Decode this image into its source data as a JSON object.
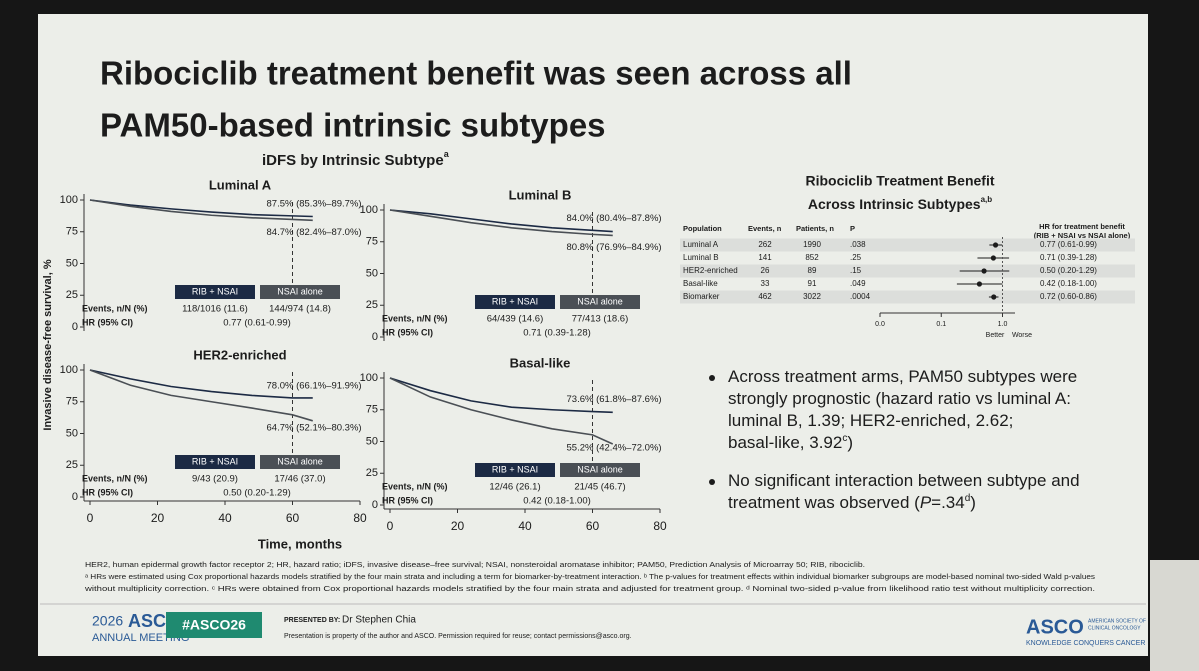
{
  "title": [
    "Ribociclib treatment benefit was seen across all",
    "PAM50-based intrinsic subtypes"
  ],
  "km": {
    "heading": "iDFS by Intrinsic Subtype",
    "heading_sup": "a",
    "y_label": "Invasive disease-free survival, %",
    "x_label": "Time, months"
  },
  "chart_data": [
    {
      "type": "line",
      "title": "Luminal A",
      "x": [
        0,
        12,
        24,
        36,
        48,
        60,
        66
      ],
      "xlim": [
        0,
        80
      ],
      "ylim": [
        0,
        100
      ],
      "yticks": [
        0,
        25,
        50,
        75,
        100
      ],
      "reference_x": 60,
      "series": [
        {
          "name": "RIB + NSAI",
          "color": "#1c2a44",
          "values": [
            100,
            96,
            93,
            90.5,
            88.5,
            87.5,
            87
          ]
        },
        {
          "name": "NSAI alone",
          "color": "#4a4f55",
          "values": [
            100,
            95,
            91,
            88,
            86,
            84.7,
            84
          ]
        }
      ],
      "annotations": [
        "87.5% (85.3%–89.7%)",
        "84.7% (82.4%–87.0%)"
      ],
      "table": {
        "rows": [
          {
            "label": "Events, n/N (%)",
            "cells": [
              "118/1016 (11.6)",
              "144/974 (14.8)"
            ]
          },
          {
            "label": "HR (95% CI)",
            "cells": [
              "0.77 (0.61-0.99)"
            ]
          }
        ]
      }
    },
    {
      "type": "line",
      "title": "Luminal B",
      "x": [
        0,
        12,
        24,
        36,
        48,
        60,
        66
      ],
      "xlim": [
        0,
        80
      ],
      "ylim": [
        0,
        100
      ],
      "yticks": [
        0,
        25,
        50,
        75,
        100
      ],
      "reference_x": 60,
      "series": [
        {
          "name": "RIB + NSAI",
          "color": "#1c2a44",
          "values": [
            100,
            97,
            93,
            89,
            86,
            84,
            83
          ]
        },
        {
          "name": "NSAI alone",
          "color": "#4a4f55",
          "values": [
            100,
            95,
            90,
            86,
            83,
            80.8,
            80
          ]
        }
      ],
      "annotations": [
        "84.0% (80.4%–87.8%)",
        "80.8% (76.9%–84.9%)"
      ],
      "table": {
        "rows": [
          {
            "label": "Events, n/N (%)",
            "cells": [
              "64/439 (14.6)",
              "77/413 (18.6)"
            ]
          },
          {
            "label": "HR (95% CI)",
            "cells": [
              "0.71 (0.39-1.28)"
            ]
          }
        ]
      }
    },
    {
      "type": "line",
      "title": "HER2-enriched",
      "x": [
        0,
        12,
        24,
        36,
        48,
        60,
        66
      ],
      "xlim": [
        0,
        80
      ],
      "ylim": [
        0,
        100
      ],
      "yticks": [
        0,
        25,
        50,
        75,
        100
      ],
      "xticks": [
        0,
        20,
        40,
        60,
        80
      ],
      "reference_x": 60,
      "series": [
        {
          "name": "RIB + NSAI",
          "color": "#1c2a44",
          "values": [
            100,
            93,
            87,
            83,
            80,
            78,
            78
          ]
        },
        {
          "name": "NSAI alone",
          "color": "#4a4f55",
          "values": [
            100,
            88,
            80,
            75,
            70,
            64.7,
            60
          ]
        }
      ],
      "annotations": [
        "78.0% (66.1%–91.9%)",
        "64.7% (52.1%–80.3%)"
      ],
      "table": {
        "rows": [
          {
            "label": "Events, n/N (%)",
            "cells": [
              "9/43 (20.9)",
              "17/46 (37.0)"
            ]
          },
          {
            "label": "HR (95% CI)",
            "cells": [
              "0.50 (0.20-1.29)"
            ]
          }
        ]
      }
    },
    {
      "type": "line",
      "title": "Basal-like",
      "x": [
        0,
        12,
        24,
        36,
        48,
        60,
        66
      ],
      "xlim": [
        0,
        80
      ],
      "ylim": [
        0,
        100
      ],
      "yticks": [
        0,
        25,
        50,
        75,
        100
      ],
      "xticks": [
        0,
        20,
        40,
        60,
        80
      ],
      "reference_x": 60,
      "series": [
        {
          "name": "RIB + NSAI",
          "color": "#1c2a44",
          "values": [
            100,
            90,
            82,
            77,
            75,
            73.6,
            73
          ]
        },
        {
          "name": "NSAI alone",
          "color": "#4a4f55",
          "values": [
            100,
            85,
            75,
            67,
            60,
            55.2,
            48
          ]
        }
      ],
      "annotations": [
        "73.6% (61.8%–87.6%)",
        "55.2% (42.4%–72.0%)"
      ],
      "table": {
        "rows": [
          {
            "label": "Events, n/N (%)",
            "cells": [
              "12/46 (26.1)",
              "21/45 (46.7)"
            ]
          },
          {
            "label": "HR (95% CI)",
            "cells": [
              "0.42 (0.18-1.00)"
            ]
          }
        ]
      }
    },
    {
      "type": "forest",
      "title": [
        "Ribociclib Treatment Benefit",
        "Across Intrinsic Subtypes"
      ],
      "title_sup": "a,b",
      "columns": [
        "Population",
        "Events, n",
        "Patients, n",
        "P"
      ],
      "hr_header": [
        "HR for treatment benefit",
        "(RIB + NSAI vs NSAI alone)"
      ],
      "categories": [
        "Luminal A",
        "Luminal B",
        "HER2-enriched",
        "Basal-like",
        "Biomarker"
      ],
      "events": [
        "262",
        "141",
        "26",
        "33",
        "462"
      ],
      "patients": [
        "1990",
        "852",
        "89",
        "91",
        "3022"
      ],
      "p": [
        ".038",
        ".25",
        ".15",
        ".049",
        ".0004"
      ],
      "values": [
        0.77,
        0.71,
        0.5,
        0.42,
        0.72
      ],
      "ci_low": [
        0.61,
        0.39,
        0.2,
        0.18,
        0.6
      ],
      "ci_high": [
        0.99,
        1.28,
        1.29,
        1.0,
        0.86
      ],
      "value_labels": [
        "0.77 (0.61-0.99)",
        "0.71 (0.39-1.28)",
        "0.50 (0.20-1.29)",
        "0.42 (0.18-1.00)",
        "0.72 (0.60-0.86)"
      ],
      "log_scale": true,
      "xlim": [
        0.01,
        1.6
      ],
      "xticks": [
        {
          "value": 0.01,
          "label": "0.0"
        },
        {
          "value": 0.1,
          "label": "0.1"
        },
        {
          "value": 1,
          "label": "1.0"
        }
      ],
      "direction_labels": [
        "Better",
        "Worse"
      ],
      "color": "#1c1c1c"
    }
  ],
  "bullets": [
    {
      "lines": [
        "Across treatment arms, PAM50 subtypes were",
        "strongly prognostic (hazard ratio vs luminal A:",
        "luminal B, 1.39; HER2-enriched, 2.62;",
        "basal-like, 3.92"
      ],
      "sup": "c",
      "tail": ")"
    },
    {
      "lines": [
        "No significant interaction between subtype and",
        "treatment was observed ("
      ],
      "italic": "P",
      "after_italic": "=.34",
      "sup": "d",
      "tail": ")"
    }
  ],
  "footnotes": [
    "HER2, human epidermal growth factor receptor 2; HR, hazard ratio; iDFS, invasive disease–free survival; NSAI, nonsteroidal aromatase inhibitor; PAM50, Prediction Analysis of Microarray 50; RIB, ribociclib.",
    "ᵃ HRs were estimated using Cox proportional hazards models stratified by the four main strata and including a term for biomarker-by-treatment interaction. ᵇ The p-values for treatment effects within individual biomarker subgroups are model-based nominal two-sided Wald p-values",
    "without multiplicity correction. ᶜ HRs were obtained from Cox proportional hazards models stratified by the four main strata and adjusted for treatment group. ᵈ Nominal two-sided p-value from likelihood ratio test without multiplicity correction."
  ],
  "footer": {
    "year": "2026",
    "asco": "ASCO",
    "meeting": "ANNUAL MEETING",
    "hashtag": "#ASCO26",
    "presented_by": "PRESENTED BY:",
    "presenter": "Dr Stephen Chia",
    "notice": "Presentation is property of the author and ASCO. Permission required for reuse; contact permissions@asco.org.",
    "logo": "ASCO",
    "logo_society": [
      "AMERICAN SOCIETY OF",
      "CLINICAL ONCOLOGY"
    ],
    "tagline": "KNOWLEDGE CONQUERS CANCER"
  }
}
